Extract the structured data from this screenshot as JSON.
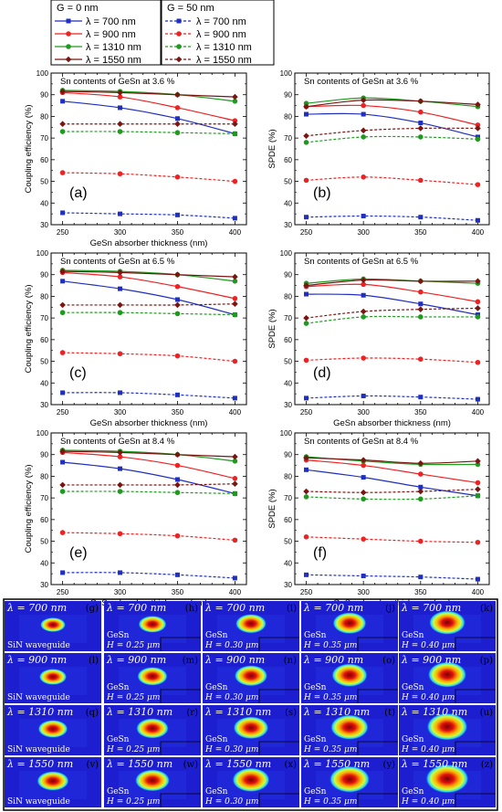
{
  "legend": {
    "left_title": "G = 0 nm",
    "right_title": "G = 50 nm",
    "entries": [
      {
        "label": "λ = 700 nm",
        "color": "#1f2fbf",
        "marker": "square"
      },
      {
        "label": "λ = 900 nm",
        "color": "#ee2222",
        "marker": "circle"
      },
      {
        "label": "λ = 1310 nm",
        "color": "#1e9a1e",
        "marker": "circle"
      },
      {
        "label": "λ = 1550 nm",
        "color": "#7a1512",
        "marker": "diamond"
      }
    ]
  },
  "chart_data": [
    {
      "id": "a",
      "type": "line",
      "panel_label": "(a)",
      "title": "Sn contents of GeSn at 3.6 %",
      "xlabel": "GeSn absorber thickness (nm)",
      "ylabel": "Coupling efficiency (%)",
      "xlim": [
        240,
        410
      ],
      "ylim": [
        30,
        100
      ],
      "xticks": [
        240,
        250,
        260,
        270,
        280,
        290,
        300,
        310,
        320,
        330,
        340,
        350,
        360,
        370,
        380,
        390,
        400,
        410
      ],
      "yticks": [
        30,
        40,
        50,
        60,
        70,
        80,
        90,
        100
      ],
      "x": [
        250,
        300,
        350,
        400
      ],
      "series": [
        {
          "legend": "λ = 700 nm",
          "g": "0",
          "values": [
            87,
            84,
            79,
            72
          ]
        },
        {
          "legend": "λ = 900 nm",
          "g": "0",
          "values": [
            91,
            89,
            84,
            78
          ]
        },
        {
          "legend": "λ = 1310 nm",
          "g": "0",
          "values": [
            92,
            91.5,
            90,
            87
          ]
        },
        {
          "legend": "λ = 1550 nm",
          "g": "0",
          "values": [
            91.5,
            91,
            90,
            89
          ]
        },
        {
          "legend": "λ = 700 nm",
          "g": "50",
          "values": [
            35.5,
            35,
            34.5,
            33
          ]
        },
        {
          "legend": "λ = 900 nm",
          "g": "50",
          "values": [
            54,
            53.5,
            52,
            50
          ]
        },
        {
          "legend": "λ = 1310 nm",
          "g": "50",
          "values": [
            73,
            73,
            72.5,
            72
          ]
        },
        {
          "legend": "λ = 1550 nm",
          "g": "50",
          "values": [
            76.5,
            76.5,
            76.5,
            76.5
          ]
        }
      ]
    },
    {
      "id": "b",
      "type": "line",
      "panel_label": "(b)",
      "title": "Sn contents of GeSn at 3.6 %",
      "xlabel": "",
      "ylabel": "SPDE (%)",
      "xlim": [
        240,
        410
      ],
      "ylim": [
        30,
        100
      ],
      "xticks": [
        240,
        250,
        260,
        270,
        280,
        290,
        300,
        310,
        320,
        330,
        340,
        350,
        360,
        370,
        380,
        390,
        400,
        410
      ],
      "yticks": [
        30,
        40,
        50,
        60,
        70,
        80,
        90,
        100
      ],
      "x": [
        250,
        300,
        350,
        400
      ],
      "series": [
        {
          "legend": "λ = 700 nm",
          "g": "0",
          "values": [
            81,
            81,
            77,
            70.5
          ]
        },
        {
          "legend": "λ = 900 nm",
          "g": "0",
          "values": [
            84.5,
            85,
            82,
            76
          ]
        },
        {
          "legend": "λ = 1310 nm",
          "g": "0",
          "values": [
            86,
            88.5,
            87,
            84.5
          ]
        },
        {
          "legend": "λ = 1550 nm",
          "g": "0",
          "values": [
            84.5,
            87.5,
            87,
            85.5
          ]
        },
        {
          "legend": "λ = 700 nm",
          "g": "50",
          "values": [
            33.5,
            34,
            33.5,
            32
          ]
        },
        {
          "legend": "λ = 900 nm",
          "g": "50",
          "values": [
            50.5,
            52,
            50.5,
            48.5
          ]
        },
        {
          "legend": "λ = 1310 nm",
          "g": "50",
          "values": [
            68,
            70.5,
            70.5,
            69.5
          ]
        },
        {
          "legend": "λ = 1550 nm",
          "g": "50",
          "values": [
            71,
            73.5,
            74.5,
            74.5
          ]
        }
      ]
    },
    {
      "id": "c",
      "type": "line",
      "panel_label": "(c)",
      "title": "Sn contents of GeSn at 6.5 %",
      "xlabel": "GeSn absorber thickness (nm)",
      "ylabel": "Coupling efficiency (%)",
      "xlim": [
        240,
        410
      ],
      "ylim": [
        30,
        100
      ],
      "xticks": [
        240,
        250,
        260,
        270,
        280,
        290,
        300,
        310,
        320,
        330,
        340,
        350,
        360,
        370,
        380,
        390,
        400,
        410
      ],
      "yticks": [
        30,
        40,
        50,
        60,
        70,
        80,
        90,
        100
      ],
      "x": [
        250,
        300,
        350,
        400
      ],
      "series": [
        {
          "legend": "λ = 700 nm",
          "g": "0",
          "values": [
            87,
            83.5,
            78.5,
            71.5
          ]
        },
        {
          "legend": "λ = 900 nm",
          "g": "0",
          "values": [
            91,
            89,
            84.5,
            79
          ]
        },
        {
          "legend": "λ = 1310 nm",
          "g": "0",
          "values": [
            92,
            91.5,
            90,
            87
          ]
        },
        {
          "legend": "λ = 1550 nm",
          "g": "0",
          "values": [
            91.5,
            91,
            90,
            89
          ]
        },
        {
          "legend": "λ = 700 nm",
          "g": "50",
          "values": [
            35.5,
            35.5,
            34.5,
            33
          ]
        },
        {
          "legend": "λ = 900 nm",
          "g": "50",
          "values": [
            54,
            53.5,
            52.5,
            50
          ]
        },
        {
          "legend": "λ = 1310 nm",
          "g": "50",
          "values": [
            72.5,
            72.5,
            72,
            71.5
          ]
        },
        {
          "legend": "λ = 1550 nm",
          "g": "50",
          "values": [
            76,
            76,
            76,
            76.5
          ]
        }
      ]
    },
    {
      "id": "d",
      "type": "line",
      "panel_label": "(d)",
      "title": "Sn contents of GeSn at 6.5 %",
      "xlabel": "GeSn absorber thickness (nm)",
      "ylabel": "SPDE (%)",
      "xlim": [
        240,
        410
      ],
      "ylim": [
        30,
        100
      ],
      "xticks": [
        240,
        250,
        260,
        270,
        280,
        290,
        300,
        310,
        320,
        330,
        340,
        350,
        360,
        370,
        380,
        390,
        400,
        410
      ],
      "yticks": [
        30,
        40,
        50,
        60,
        70,
        80,
        90,
        100
      ],
      "x": [
        250,
        300,
        350,
        400
      ],
      "series": [
        {
          "legend": "λ = 700 nm",
          "g": "0",
          "values": [
            81,
            80.5,
            76.5,
            71.5
          ]
        },
        {
          "legend": "λ = 900 nm",
          "g": "0",
          "values": [
            84.5,
            85.5,
            82,
            77.5
          ]
        },
        {
          "legend": "λ = 1310 nm",
          "g": "0",
          "values": [
            86,
            88,
            87,
            86
          ]
        },
        {
          "legend": "λ = 1550 nm",
          "g": "0",
          "values": [
            85,
            87.5,
            87,
            87
          ]
        },
        {
          "legend": "λ = 700 nm",
          "g": "50",
          "values": [
            33,
            34,
            33.5,
            32.5
          ]
        },
        {
          "legend": "λ = 900 nm",
          "g": "50",
          "values": [
            50.5,
            51.5,
            51,
            49.5
          ]
        },
        {
          "legend": "λ = 1310 nm",
          "g": "50",
          "values": [
            67.5,
            70.5,
            70.5,
            70.5
          ]
        },
        {
          "legend": "λ = 1550 nm",
          "g": "50",
          "values": [
            70,
            73,
            74,
            74.5
          ]
        }
      ]
    },
    {
      "id": "e",
      "type": "line",
      "panel_label": "(e)",
      "title": "Sn contents of GeSn at 8.4 %",
      "xlabel": "GeSn absorber thickness (nm)",
      "ylabel": "Coupling efficiency (%)",
      "xlim": [
        240,
        410
      ],
      "ylim": [
        30,
        100
      ],
      "xticks": [
        240,
        250,
        260,
        270,
        280,
        290,
        300,
        310,
        320,
        330,
        340,
        350,
        360,
        370,
        380,
        390,
        400,
        410
      ],
      "yticks": [
        30,
        40,
        50,
        60,
        70,
        80,
        90,
        100
      ],
      "x": [
        250,
        300,
        350,
        400
      ],
      "series": [
        {
          "legend": "λ = 700 nm",
          "g": "0",
          "values": [
            86.5,
            83.5,
            78.5,
            72
          ]
        },
        {
          "legend": "λ = 900 nm",
          "g": "0",
          "values": [
            91,
            89,
            85,
            79
          ]
        },
        {
          "legend": "λ = 1310 nm",
          "g": "0",
          "values": [
            92,
            91.5,
            90,
            87
          ]
        },
        {
          "legend": "λ = 1550 nm",
          "g": "0",
          "values": [
            91.5,
            91,
            90,
            89
          ]
        },
        {
          "legend": "λ = 700 nm",
          "g": "50",
          "values": [
            35.5,
            35.5,
            34.5,
            33
          ]
        },
        {
          "legend": "λ = 900 nm",
          "g": "50",
          "values": [
            54,
            53.5,
            52.5,
            50.5
          ]
        },
        {
          "legend": "λ = 1310 nm",
          "g": "50",
          "values": [
            73,
            73,
            72.5,
            72
          ]
        },
        {
          "legend": "λ = 1550 nm",
          "g": "50",
          "values": [
            76,
            76,
            76,
            76.5
          ]
        }
      ]
    },
    {
      "id": "f",
      "type": "line",
      "panel_label": "(f)",
      "title": "Sn contents of GeSn at 8.4 %",
      "xlabel": "GeSn absorber thickness (nm)",
      "ylabel": "SPDE (%)",
      "xlim": [
        240,
        410
      ],
      "ylim": [
        30,
        100
      ],
      "xticks": [
        240,
        250,
        260,
        270,
        280,
        290,
        300,
        310,
        320,
        330,
        340,
        350,
        360,
        370,
        380,
        390,
        400,
        410
      ],
      "yticks": [
        30,
        40,
        50,
        60,
        70,
        80,
        90,
        100
      ],
      "x": [
        250,
        300,
        350,
        400
      ],
      "series": [
        {
          "legend": "λ = 700 nm",
          "g": "0",
          "values": [
            83,
            79.5,
            75,
            71
          ]
        },
        {
          "legend": "λ = 900 nm",
          "g": "0",
          "values": [
            87.5,
            85,
            81,
            77
          ]
        },
        {
          "legend": "λ = 1310 nm",
          "g": "0",
          "values": [
            89,
            87,
            85.5,
            85.5
          ]
        },
        {
          "legend": "λ = 1550 nm",
          "g": "0",
          "values": [
            88.5,
            87.5,
            86,
            87
          ]
        },
        {
          "legend": "λ = 700 nm",
          "g": "50",
          "values": [
            34.5,
            34,
            33.5,
            32.5
          ]
        },
        {
          "legend": "λ = 900 nm",
          "g": "50",
          "values": [
            52,
            51,
            50,
            49.5
          ]
        },
        {
          "legend": "λ = 1310 nm",
          "g": "50",
          "values": [
            70.5,
            69.5,
            69.5,
            71
          ]
        },
        {
          "legend": "λ = 1550 nm",
          "g": "50",
          "values": [
            73,
            72.5,
            73,
            74
          ]
        }
      ]
    }
  ],
  "field_maps": {
    "rows": [
      {
        "wavelength": "λ = 700 nm",
        "labels": [
          "(g)",
          "(h)",
          "(i)",
          "(j)",
          "(k)"
        ]
      },
      {
        "wavelength": "λ = 900 nm",
        "labels": [
          "(l)",
          "(m)",
          "(n)",
          "(o)",
          "(p)"
        ]
      },
      {
        "wavelength": "λ = 1310 nm",
        "labels": [
          "(q)",
          "(r)",
          "(s)",
          "(t)",
          "(u)"
        ]
      },
      {
        "wavelength": "λ = 1550 nm",
        "labels": [
          "(v)",
          "(w)",
          "(x)",
          "(y)",
          "(z)"
        ]
      }
    ],
    "first_column_note": "SiN waveguide",
    "gesn_label": "GeSn",
    "thickness_labels": [
      "H = 0.25 μm",
      "H = 0.30 μm",
      "H = 0.35 μm",
      "H = 0.40 μm"
    ]
  }
}
